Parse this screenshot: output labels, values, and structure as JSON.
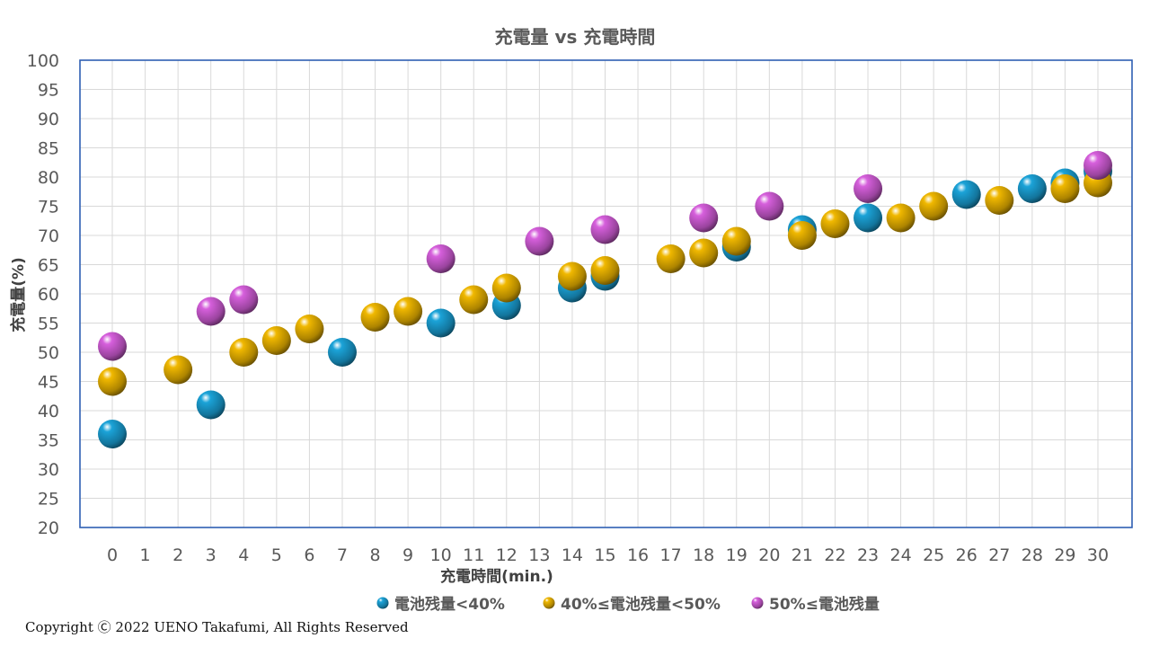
{
  "chart_data": {
    "type": "scatter",
    "title": "充電量 vs 充電時間",
    "xlabel": "充電時間(min.)",
    "ylabel": "充電量(%)",
    "xlim": [
      0,
      30
    ],
    "ylim": [
      20,
      100
    ],
    "x_ticks": [
      0,
      1,
      2,
      3,
      4,
      5,
      6,
      7,
      8,
      9,
      10,
      11,
      12,
      13,
      14,
      15,
      16,
      17,
      18,
      19,
      20,
      21,
      22,
      23,
      24,
      25,
      26,
      27,
      28,
      29,
      30
    ],
    "y_ticks": [
      20,
      25,
      30,
      35,
      40,
      45,
      50,
      55,
      60,
      65,
      70,
      75,
      80,
      85,
      90,
      95,
      100
    ],
    "grid": true,
    "legend_position": "bottom",
    "series": [
      {
        "name": "電池残量<40%",
        "color": "#1ba3d8",
        "points": [
          [
            0,
            36
          ],
          [
            3,
            41
          ],
          [
            7,
            50
          ],
          [
            10,
            55
          ],
          [
            12,
            58
          ],
          [
            14,
            61
          ],
          [
            15,
            63
          ],
          [
            19,
            68
          ],
          [
            21,
            71
          ],
          [
            23,
            73
          ],
          [
            26,
            77
          ],
          [
            28,
            78
          ],
          [
            29,
            79
          ],
          [
            30,
            81
          ]
        ]
      },
      {
        "name": "40%≤電池残量<50%",
        "color": "#f0b800",
        "points": [
          [
            0,
            45
          ],
          [
            2,
            47
          ],
          [
            4,
            50
          ],
          [
            5,
            52
          ],
          [
            6,
            54
          ],
          [
            8,
            56
          ],
          [
            9,
            57
          ],
          [
            11,
            59
          ],
          [
            12,
            61
          ],
          [
            14,
            63
          ],
          [
            15,
            64
          ],
          [
            17,
            66
          ],
          [
            18,
            67
          ],
          [
            19,
            69
          ],
          [
            21,
            70
          ],
          [
            22,
            72
          ],
          [
            24,
            73
          ],
          [
            25,
            75
          ],
          [
            27,
            76
          ],
          [
            29,
            78
          ],
          [
            30,
            79
          ]
        ]
      },
      {
        "name": "50%≤電池残量",
        "color": "#d65fdc",
        "points": [
          [
            0,
            51
          ],
          [
            3,
            57
          ],
          [
            4,
            59
          ],
          [
            10,
            66
          ],
          [
            13,
            69
          ],
          [
            15,
            71
          ],
          [
            18,
            73
          ],
          [
            20,
            75
          ],
          [
            23,
            78
          ],
          [
            30,
            82
          ]
        ]
      }
    ]
  },
  "footer": {
    "copyright": "Copyright Ⓒ 2022 UENO Takafumi, All Rights Reserved"
  }
}
